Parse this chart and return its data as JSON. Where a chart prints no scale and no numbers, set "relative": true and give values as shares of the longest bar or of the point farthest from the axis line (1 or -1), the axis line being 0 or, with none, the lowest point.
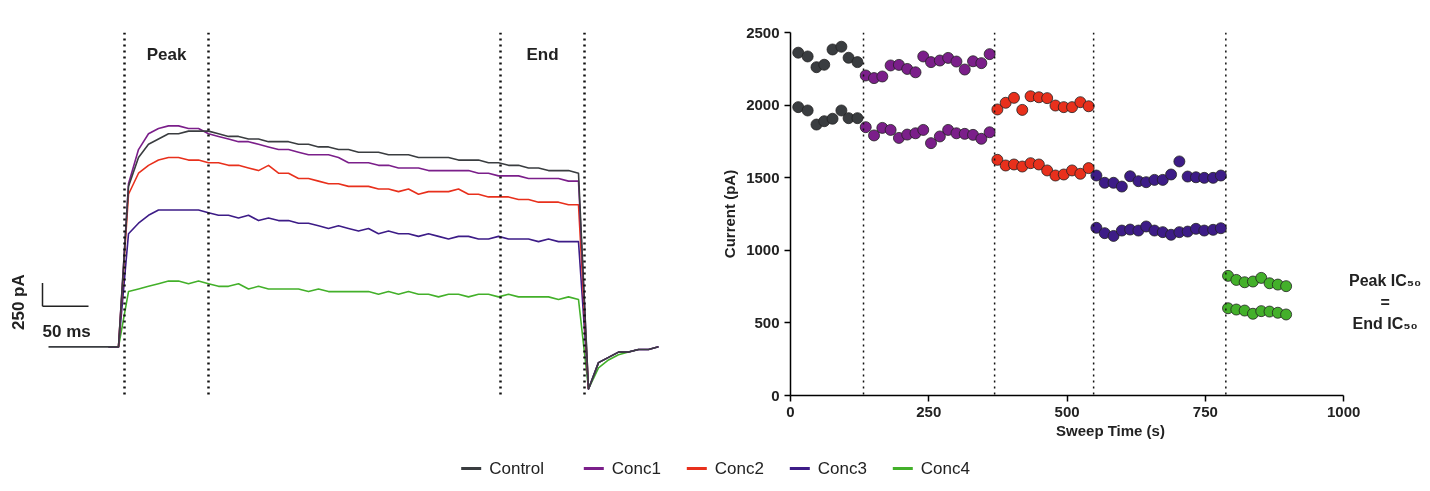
{
  "chart_data": [
    {
      "type": "line",
      "relative": true,
      "tick_labels": false,
      "legend": "bottom",
      "categories": [
        null,
        null,
        null,
        null,
        null,
        null,
        null,
        null,
        null,
        null,
        null,
        null,
        null,
        null,
        null,
        null,
        null,
        null,
        null,
        null,
        null,
        null,
        null,
        null,
        null,
        null,
        null,
        null,
        null,
        null,
        null,
        null,
        null,
        null,
        null,
        null,
        null,
        null,
        null,
        null,
        null,
        null,
        null,
        null,
        null,
        null,
        null,
        null,
        null,
        null,
        null,
        null,
        null,
        null,
        null,
        null,
        null,
        null,
        null,
        null,
        null,
        null
      ],
      "series": [
        {
          "name": "Control",
          "color": "#3a3d40",
          "values": [
            0.16,
            0.16,
            0.16,
            0.16,
            0.16,
            0.16,
            0.16,
            0.16,
            0.77,
            0.88,
            0.93,
            0.95,
            0.97,
            0.97,
            0.98,
            0.98,
            0.98,
            0.97,
            0.96,
            0.96,
            0.95,
            0.95,
            0.94,
            0.94,
            0.94,
            0.93,
            0.93,
            0.92,
            0.92,
            0.91,
            0.91,
            0.9,
            0.9,
            0.9,
            0.89,
            0.89,
            0.89,
            0.88,
            0.88,
            0.88,
            0.88,
            0.87,
            0.87,
            0.87,
            0.86,
            0.86,
            0.85,
            0.85,
            0.84,
            0.84,
            0.83,
            0.83,
            0.83,
            0.82,
            0,
            0.1,
            0.12,
            0.14,
            0.14,
            0.15,
            0.15,
            0.16
          ]
        },
        {
          "name": "Conc1",
          "color": "#7b1f8a",
          "values": [
            null,
            null,
            null,
            null,
            null,
            null,
            0.16,
            0.16,
            0.78,
            0.91,
            0.97,
            0.99,
            1.0,
            1.0,
            0.99,
            0.99,
            0.97,
            0.96,
            0.95,
            0.94,
            0.94,
            0.93,
            0.92,
            0.91,
            0.91,
            0.9,
            0.89,
            0.89,
            0.89,
            0.88,
            0.86,
            0.86,
            0.86,
            0.85,
            0.85,
            0.84,
            0.84,
            0.84,
            0.83,
            0.83,
            0.83,
            0.83,
            0.83,
            0.82,
            0.82,
            0.81,
            0.81,
            0.81,
            0.8,
            0.8,
            0.8,
            0.8,
            0.79,
            0.79,
            0,
            0.1,
            0.12,
            0.14,
            0.14,
            0.15,
            0.15,
            0.16
          ]
        },
        {
          "name": "Conc2",
          "color": "#e8301c",
          "values": [
            null,
            null,
            null,
            null,
            null,
            null,
            null,
            0.16,
            0.74,
            0.82,
            0.85,
            0.87,
            0.88,
            0.88,
            0.87,
            0.87,
            0.86,
            0.86,
            0.85,
            0.85,
            0.84,
            0.83,
            0.85,
            0.82,
            0.82,
            0.8,
            0.8,
            0.79,
            0.78,
            0.78,
            0.77,
            0.77,
            0.77,
            0.76,
            0.76,
            0.75,
            0.76,
            0.74,
            0.75,
            0.75,
            0.75,
            0.76,
            0.74,
            0.74,
            0.73,
            0.73,
            0.73,
            0.72,
            0.72,
            0.71,
            0.71,
            0.71,
            0.7,
            0.7,
            0,
            null,
            null,
            null,
            null,
            null,
            null,
            null
          ]
        },
        {
          "name": "Conc3",
          "color": "#3d1c87",
          "values": [
            null,
            null,
            null,
            null,
            null,
            null,
            0.16,
            0.16,
            0.59,
            0.63,
            0.66,
            0.68,
            0.68,
            0.68,
            0.68,
            0.68,
            0.67,
            0.66,
            0.66,
            0.65,
            0.66,
            0.64,
            0.65,
            0.64,
            0.64,
            0.63,
            0.63,
            0.62,
            0.61,
            0.62,
            0.61,
            0.6,
            0.61,
            0.59,
            0.6,
            0.59,
            0.59,
            0.58,
            0.59,
            0.58,
            0.57,
            0.58,
            0.58,
            0.57,
            0.57,
            0.58,
            0.57,
            0.57,
            0.57,
            0.56,
            0.57,
            0.56,
            0.56,
            0.56,
            0,
            0.1,
            0.12,
            0.14,
            0.14,
            0.15,
            0.15,
            0.16
          ]
        },
        {
          "name": "Conc4",
          "color": "#43b02a",
          "values": [
            null,
            null,
            null,
            null,
            null,
            null,
            0.16,
            0.16,
            0.37,
            0.38,
            0.39,
            0.4,
            0.41,
            0.41,
            0.4,
            0.41,
            0.4,
            0.39,
            0.39,
            0.4,
            0.38,
            0.39,
            0.38,
            0.38,
            0.38,
            0.38,
            0.37,
            0.38,
            0.37,
            0.37,
            0.37,
            0.37,
            0.37,
            0.36,
            0.37,
            0.36,
            0.37,
            0.36,
            0.36,
            0.35,
            0.36,
            0.36,
            0.35,
            0.36,
            0.36,
            0.35,
            0.36,
            0.35,
            0.35,
            0.35,
            0.35,
            0.34,
            0.35,
            0.34,
            0,
            0.08,
            0.11,
            0.13,
            0.14,
            0.15,
            null,
            null
          ]
        }
      ],
      "annotations": [
        "Peak",
        "End",
        "250 pA",
        "50 ms"
      ]
    },
    {
      "type": "scatter",
      "marker": "circle",
      "xlabel": "Sweep Time (s)",
      "ylabel": "Current (pA)",
      "xlim": [
        0,
        1000
      ],
      "ylim": [
        0,
        2500
      ],
      "xticks": [
        0,
        250,
        500,
        750,
        1000
      ],
      "yticks": [
        0,
        500,
        1000,
        1500,
        2000,
        2500
      ],
      "series": [
        {
          "color": "#3a3d40",
          "x": [
            14,
            31,
            47,
            61,
            76,
            92,
            105,
            121,
            14,
            31,
            47,
            61,
            76,
            92,
            105,
            121
          ],
          "values": [
            2361,
            2335,
            2261,
            2278,
            2383,
            2402,
            2326,
            2296,
            1986,
            1963,
            1866,
            1889,
            1906,
            1963,
            1910,
            1910
          ]
        },
        {
          "color": "#7b1f8a",
          "x": [
            136,
            151,
            166,
            181,
            196,
            211,
            226,
            240,
            254,
            270,
            285,
            300,
            315,
            330,
            345,
            360,
            136,
            151,
            166,
            181,
            196,
            211,
            226,
            240,
            254,
            270,
            285,
            300,
            315,
            330,
            345,
            360
          ],
          "values": [
            2204,
            2186,
            2197,
            2273,
            2277,
            2249,
            2226,
            2335,
            2296,
            2307,
            2325,
            2300,
            2245,
            2302,
            2289,
            2351,
            1848,
            1791,
            1843,
            1829,
            1774,
            1797,
            1806,
            1829,
            1738,
            1784,
            1829,
            1806,
            1802,
            1795,
            1768,
            1813
          ]
        },
        {
          "color": "#e8301c",
          "x": [
            374,
            389,
            404,
            419,
            434,
            449,
            464,
            479,
            494,
            509,
            524,
            539,
            374,
            389,
            404,
            419,
            434,
            449,
            464,
            479,
            494,
            509,
            524,
            539
          ],
          "values": [
            1970,
            2016,
            2050,
            1967,
            2061,
            2054,
            2048,
            1997,
            1986,
            1986,
            2020,
            1992,
            1623,
            1584,
            1591,
            1577,
            1600,
            1591,
            1550,
            1515,
            1522,
            1550,
            1527,
            1566
          ]
        },
        {
          "color": "#3d1c87",
          "x": [
            553,
            568,
            584,
            599,
            614,
            629,
            643,
            658,
            673,
            688,
            703,
            718,
            733,
            748,
            764,
            778,
            553,
            568,
            584,
            599,
            614,
            629,
            643,
            658,
            673,
            688,
            703,
            718,
            733,
            748,
            764,
            778
          ],
          "values": [
            1515,
            1465,
            1465,
            1439,
            1510,
            1476,
            1469,
            1485,
            1485,
            1522,
            1612,
            1508,
            1503,
            1499,
            1499,
            1515,
            1155,
            1118,
            1099,
            1136,
            1143,
            1136,
            1164,
            1136,
            1125,
            1107,
            1125,
            1129,
            1148,
            1136,
            1141,
            1152
          ]
        },
        {
          "color": "#43b02a",
          "x": [
            791,
            806,
            821,
            836,
            851,
            866,
            881,
            896,
            791,
            806,
            821,
            836,
            851,
            866,
            881,
            896
          ],
          "values": [
            824,
            796,
            780,
            785,
            810,
            773,
            764,
            753,
            601,
            592,
            585,
            563,
            581,
            578,
            570,
            558
          ]
        }
      ],
      "ref_lines": [
        {
          "axis": "x",
          "value": 132,
          "line_style": "dotted"
        },
        {
          "axis": "x",
          "value": 369,
          "line_style": "dotted"
        },
        {
          "axis": "x",
          "value": 548,
          "line_style": "dotted"
        },
        {
          "axis": "x",
          "value": 787,
          "line_style": "dotted"
        }
      ],
      "annotations": [
        "Peak IC₅₀",
        "=",
        "End IC₅₀"
      ]
    }
  ]
}
